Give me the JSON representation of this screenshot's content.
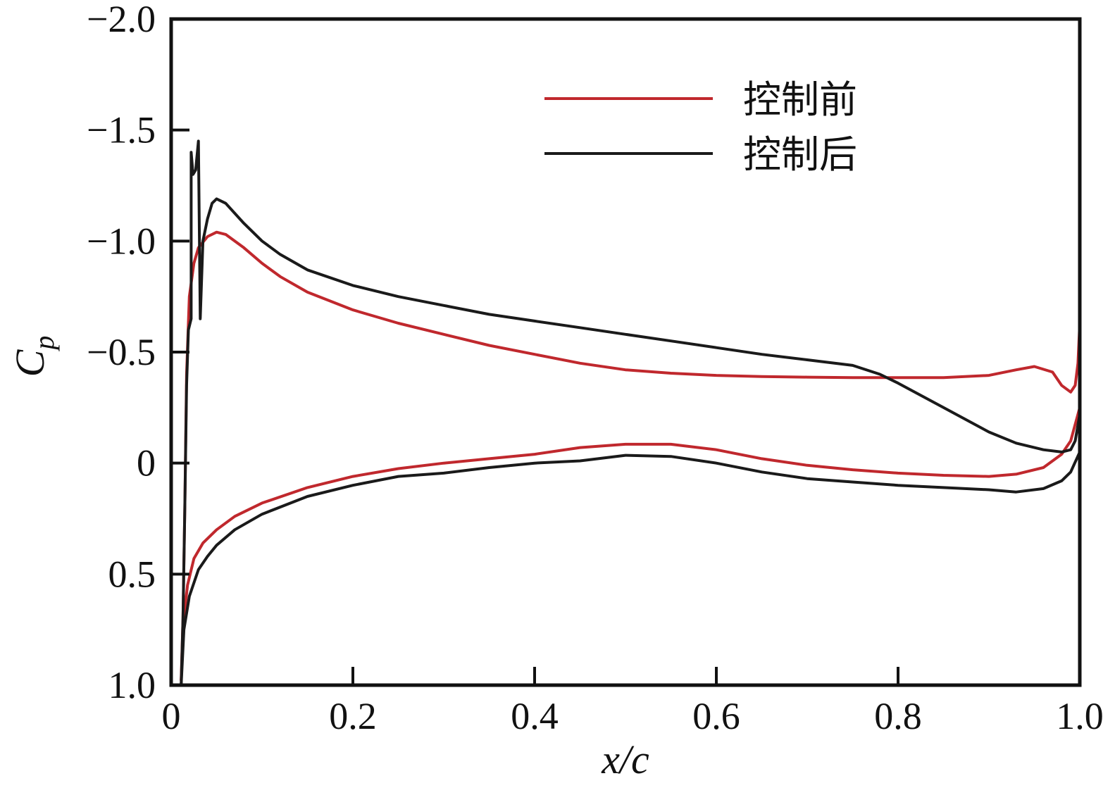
{
  "chart_data": {
    "type": "line",
    "xlabel": "x/c",
    "ylabel": "C_p",
    "xlim": [
      0,
      1.0
    ],
    "ylim": [
      1.0,
      -2.0
    ],
    "y_inverted": true,
    "x_ticks": [
      "0",
      "0.2",
      "0.4",
      "0.6",
      "0.8",
      "1.0"
    ],
    "x_tick_values": [
      0,
      0.2,
      0.4,
      0.6,
      0.8,
      1.0
    ],
    "y_ticks": [
      "−2.0",
      "−1.5",
      "−1.0",
      "−0.5",
      "0",
      "0.5",
      "1.0"
    ],
    "y_tick_values": [
      -2.0,
      -1.5,
      -1.0,
      -0.5,
      0,
      0.5,
      1.0
    ],
    "grid": false,
    "legend_position": "top-right",
    "series": [
      {
        "name": "控制前",
        "color": "#c0282d",
        "segments": [
          [
            [
              0.011,
              0.98
            ],
            [
              0.013,
              0.7
            ],
            [
              0.015,
              0.2
            ],
            [
              0.017,
              -0.4
            ],
            [
              0.02,
              -0.75
            ],
            [
              0.025,
              -0.9
            ],
            [
              0.03,
              -0.97
            ],
            [
              0.04,
              -1.02
            ],
            [
              0.05,
              -1.04
            ],
            [
              0.06,
              -1.03
            ],
            [
              0.08,
              -0.97
            ],
            [
              0.1,
              -0.9
            ],
            [
              0.12,
              -0.84
            ],
            [
              0.15,
              -0.77
            ],
            [
              0.2,
              -0.69
            ],
            [
              0.25,
              -0.63
            ],
            [
              0.3,
              -0.58
            ],
            [
              0.35,
              -0.53
            ],
            [
              0.4,
              -0.49
            ],
            [
              0.45,
              -0.45
            ],
            [
              0.5,
              -0.42
            ],
            [
              0.55,
              -0.405
            ],
            [
              0.6,
              -0.395
            ],
            [
              0.65,
              -0.39
            ],
            [
              0.7,
              -0.387
            ],
            [
              0.75,
              -0.385
            ],
            [
              0.8,
              -0.385
            ],
            [
              0.85,
              -0.385
            ],
            [
              0.9,
              -0.395
            ],
            [
              0.93,
              -0.42
            ],
            [
              0.95,
              -0.435
            ],
            [
              0.97,
              -0.41
            ],
            [
              0.98,
              -0.35
            ],
            [
              0.99,
              -0.32
            ],
            [
              0.995,
              -0.35
            ],
            [
              0.998,
              -0.45
            ],
            [
              1.0,
              -0.63
            ]
          ],
          [
            [
              0.011,
              0.98
            ],
            [
              0.014,
              0.7
            ],
            [
              0.018,
              0.55
            ],
            [
              0.025,
              0.43
            ],
            [
              0.035,
              0.36
            ],
            [
              0.05,
              0.3
            ],
            [
              0.07,
              0.24
            ],
            [
              0.1,
              0.18
            ],
            [
              0.15,
              0.11
            ],
            [
              0.2,
              0.06
            ],
            [
              0.25,
              0.025
            ],
            [
              0.3,
              0.0
            ],
            [
              0.35,
              -0.02
            ],
            [
              0.4,
              -0.04
            ],
            [
              0.45,
              -0.07
            ],
            [
              0.5,
              -0.085
            ],
            [
              0.55,
              -0.085
            ],
            [
              0.6,
              -0.06
            ],
            [
              0.65,
              -0.02
            ],
            [
              0.7,
              0.01
            ],
            [
              0.75,
              0.03
            ],
            [
              0.8,
              0.045
            ],
            [
              0.85,
              0.055
            ],
            [
              0.9,
              0.06
            ],
            [
              0.93,
              0.05
            ],
            [
              0.96,
              0.02
            ],
            [
              0.98,
              -0.04
            ],
            [
              0.99,
              -0.1
            ],
            [
              1.0,
              -0.25
            ]
          ]
        ]
      },
      {
        "name": "控制后",
        "color": "#1a1a1a",
        "segments": [
          [
            [
              0.011,
              1.0
            ],
            [
              0.013,
              0.7
            ],
            [
              0.015,
              0.2
            ],
            [
              0.017,
              -0.35
            ],
            [
              0.019,
              -0.6
            ],
            [
              0.022,
              -0.65
            ],
            [
              0.022,
              -1.4
            ],
            [
              0.024,
              -1.3
            ],
            [
              0.027,
              -1.32
            ],
            [
              0.03,
              -1.45
            ],
            [
              0.032,
              -0.65
            ],
            [
              0.035,
              -1.0
            ],
            [
              0.04,
              -1.1
            ],
            [
              0.045,
              -1.17
            ],
            [
              0.05,
              -1.19
            ],
            [
              0.06,
              -1.17
            ],
            [
              0.08,
              -1.08
            ],
            [
              0.1,
              -1.0
            ],
            [
              0.12,
              -0.94
            ],
            [
              0.15,
              -0.87
            ],
            [
              0.2,
              -0.8
            ],
            [
              0.25,
              -0.75
            ],
            [
              0.3,
              -0.71
            ],
            [
              0.35,
              -0.67
            ],
            [
              0.4,
              -0.64
            ],
            [
              0.45,
              -0.61
            ],
            [
              0.5,
              -0.58
            ],
            [
              0.55,
              -0.55
            ],
            [
              0.6,
              -0.52
            ],
            [
              0.65,
              -0.49
            ],
            [
              0.7,
              -0.465
            ],
            [
              0.75,
              -0.44
            ],
            [
              0.78,
              -0.4
            ],
            [
              0.8,
              -0.36
            ],
            [
              0.85,
              -0.25
            ],
            [
              0.9,
              -0.14
            ],
            [
              0.93,
              -0.09
            ],
            [
              0.96,
              -0.06
            ],
            [
              0.98,
              -0.05
            ],
            [
              0.99,
              -0.06
            ],
            [
              0.995,
              -0.1
            ],
            [
              1.0,
              -0.22
            ]
          ],
          [
            [
              0.011,
              1.0
            ],
            [
              0.014,
              0.75
            ],
            [
              0.02,
              0.6
            ],
            [
              0.03,
              0.48
            ],
            [
              0.04,
              0.42
            ],
            [
              0.05,
              0.37
            ],
            [
              0.07,
              0.3
            ],
            [
              0.1,
              0.23
            ],
            [
              0.15,
              0.15
            ],
            [
              0.2,
              0.1
            ],
            [
              0.25,
              0.06
            ],
            [
              0.3,
              0.045
            ],
            [
              0.35,
              0.02
            ],
            [
              0.4,
              0.0
            ],
            [
              0.45,
              -0.01
            ],
            [
              0.5,
              -0.035
            ],
            [
              0.55,
              -0.03
            ],
            [
              0.6,
              0.0
            ],
            [
              0.65,
              0.04
            ],
            [
              0.7,
              0.07
            ],
            [
              0.75,
              0.085
            ],
            [
              0.8,
              0.1
            ],
            [
              0.85,
              0.11
            ],
            [
              0.9,
              0.12
            ],
            [
              0.93,
              0.13
            ],
            [
              0.96,
              0.115
            ],
            [
              0.98,
              0.08
            ],
            [
              0.99,
              0.04
            ],
            [
              1.0,
              -0.05
            ]
          ]
        ]
      }
    ]
  }
}
